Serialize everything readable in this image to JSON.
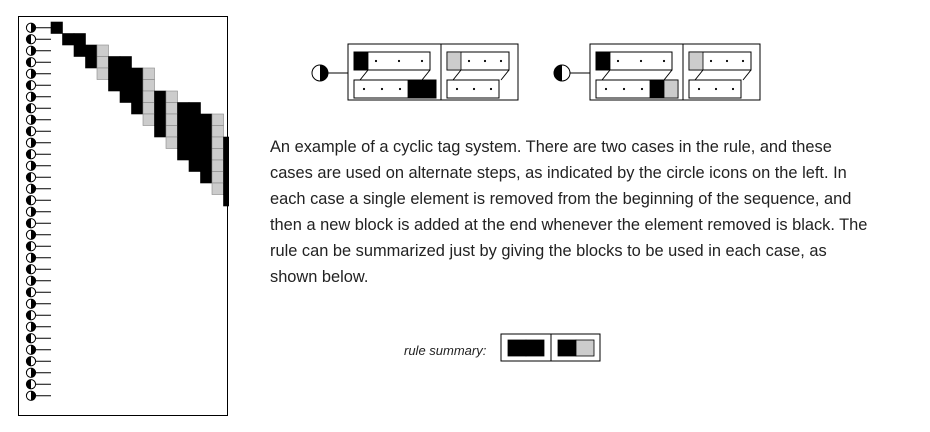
{
  "caption": "An example of a cyclic tag system. There are two cases in the rule, and these cases are used on alternate steps, as indicated by the circle icons on the left. In each case a single element is removed from the beginning of the sequence, and then a new block is added at the end whenever the element removed is black. The rule can be summarized just by giving the blocks to be used in each case, as shown below.",
  "rule_summary": {
    "label": "rule summary:",
    "blocks": [
      [
        "black",
        "black"
      ],
      [
        "black",
        "gray"
      ]
    ]
  },
  "colors": {
    "black": "#000000",
    "gray": "#cccccc",
    "white": "#ffffff"
  },
  "initial_sequence": [
    "black"
  ],
  "steps": 33
}
